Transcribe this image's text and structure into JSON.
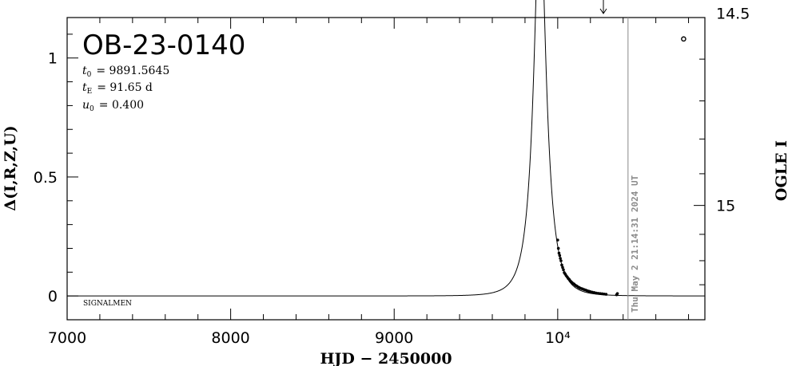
{
  "chart_data": {
    "type": "scatter",
    "event_name": "OB-23-0140",
    "params": {
      "t0": {
        "symbol": "t",
        "sub": "0",
        "value": "= 9891.5645"
      },
      "tE": {
        "symbol": "t",
        "sub": "E",
        "value": "= 91.65 d"
      },
      "u0": {
        "symbol": "u",
        "sub": "0",
        "value": "= 0.400"
      }
    },
    "xlabel": "HJD − 2450000",
    "ylabel_left": "Δ(I,R,Z,U)",
    "ylabel_right": "OGLE I",
    "xlim": [
      7000,
      10900
    ],
    "ylim_left": [
      -0.1,
      1.17
    ],
    "x_ticks": [
      {
        "value": 7000,
        "label": "7000"
      },
      {
        "value": 8000,
        "label": "8000"
      },
      {
        "value": 9000,
        "label": "9000"
      },
      {
        "value": 10000,
        "label": "10⁴"
      }
    ],
    "y_ticks_left": [
      {
        "value": 0,
        "label": "0"
      },
      {
        "value": 0.5,
        "label": "0.5"
      },
      {
        "value": 1,
        "label": "1"
      }
    ],
    "y_ticks_right": [
      {
        "value": 14.5,
        "label": "14.5"
      },
      {
        "value": 15,
        "label": "15"
      }
    ],
    "baseline_mag": 15.35,
    "model": {
      "t0": 9891.5645,
      "tE": 91.65,
      "u0": 0.4
    },
    "series": [
      {
        "x": [
          10000,
          10004,
          10008,
          10012,
          10016,
          10020,
          10025,
          10030,
          10035,
          10040,
          10046,
          10052,
          10058,
          10064,
          10070,
          10076,
          10082,
          10088,
          10094,
          10100,
          10108,
          10116,
          10124,
          10132,
          10140,
          10150,
          10160,
          10170,
          10180,
          10190,
          10200,
          10212,
          10224,
          10236,
          10248,
          10260,
          10272,
          10284,
          10296,
          10360,
          10365
        ],
        "y": [
          0.235,
          0.2,
          0.18,
          0.17,
          0.158,
          0.148,
          0.13,
          0.12,
          0.11,
          0.098,
          0.092,
          0.085,
          0.08,
          0.074,
          0.07,
          0.064,
          0.06,
          0.056,
          0.052,
          0.05,
          0.045,
          0.042,
          0.038,
          0.035,
          0.032,
          0.03,
          0.027,
          0.025,
          0.022,
          0.02,
          0.018,
          0.016,
          0.014,
          0.012,
          0.011,
          0.01,
          0.009,
          0.008,
          0.007,
          0.005,
          0.01
        ]
      }
    ],
    "outlier": {
      "x": 10770,
      "y": 1.08
    },
    "now_line_x": 10430,
    "timestamp": "Thu May  2 21:14:31 2024 UT",
    "corner_label": "SIGNALMEN"
  }
}
